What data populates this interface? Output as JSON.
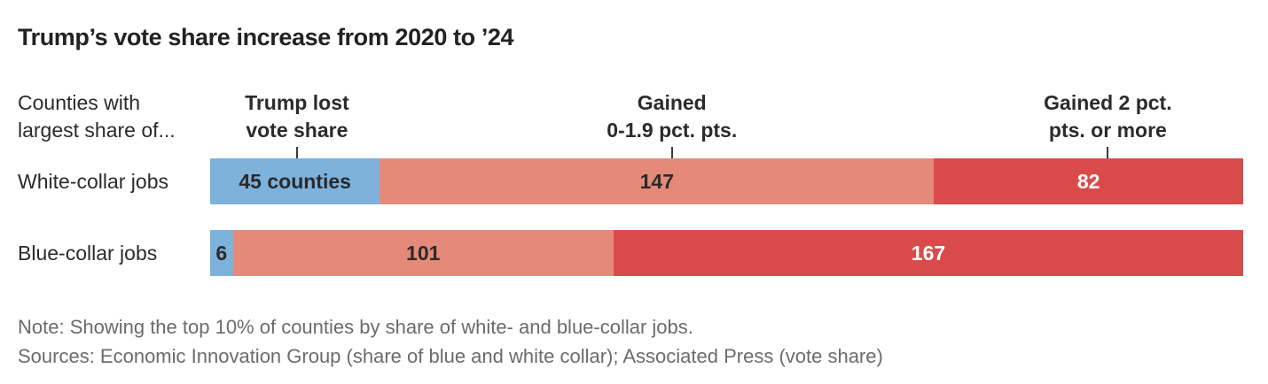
{
  "title": "Trump’s vote share increase from 2020 to ’24",
  "axis": {
    "left_label_line1": "Counties with",
    "left_label_line2": "largest share of...",
    "columns": [
      {
        "line1": "Trump lost",
        "line2": "vote share"
      },
      {
        "line1": "Gained",
        "line2": "0-1.9 pct. pts."
      },
      {
        "line1": "Gained 2 pct.",
        "line2": "pts. or more"
      }
    ]
  },
  "chart_data": {
    "type": "bar",
    "orientation": "horizontal-stacked",
    "title": "Trump’s vote share increase from 2020 to ’24",
    "categories": [
      "White-collar jobs",
      "Blue-collar jobs"
    ],
    "segment_names": [
      "Trump lost vote share",
      "Gained 0-1.9 pct. pts.",
      "Gained 2 pct. pts. or more"
    ],
    "series": [
      {
        "category": "White-collar jobs",
        "values": [
          45,
          147,
          82
        ],
        "labels": [
          "45 counties",
          "147",
          "82"
        ]
      },
      {
        "category": "Blue-collar jobs",
        "values": [
          6,
          101,
          167
        ],
        "labels": [
          "6",
          "101",
          "167"
        ]
      }
    ],
    "total_per_row": 274,
    "colors": [
      "#7db2dc",
      "#e58a78",
      "#d94b4b"
    ],
    "label_text_colors": [
      "#2a2a2a",
      "#2a2a2a",
      "#ffffff"
    ],
    "grid": false,
    "legend_position": "column-headers-top"
  },
  "notes": {
    "note": "Note: Showing the top 10% of counties by share of white- and blue-collar jobs.",
    "sources": "Sources: Economic Innovation Group (share of blue and white collar); Associated Press (vote share)"
  },
  "palette": {
    "background": "#ffffff",
    "title_text": "#222222",
    "label_text": "#2b2b2b",
    "footnote_text": "#6b6b6b",
    "tick": "#3a3a3a"
  }
}
